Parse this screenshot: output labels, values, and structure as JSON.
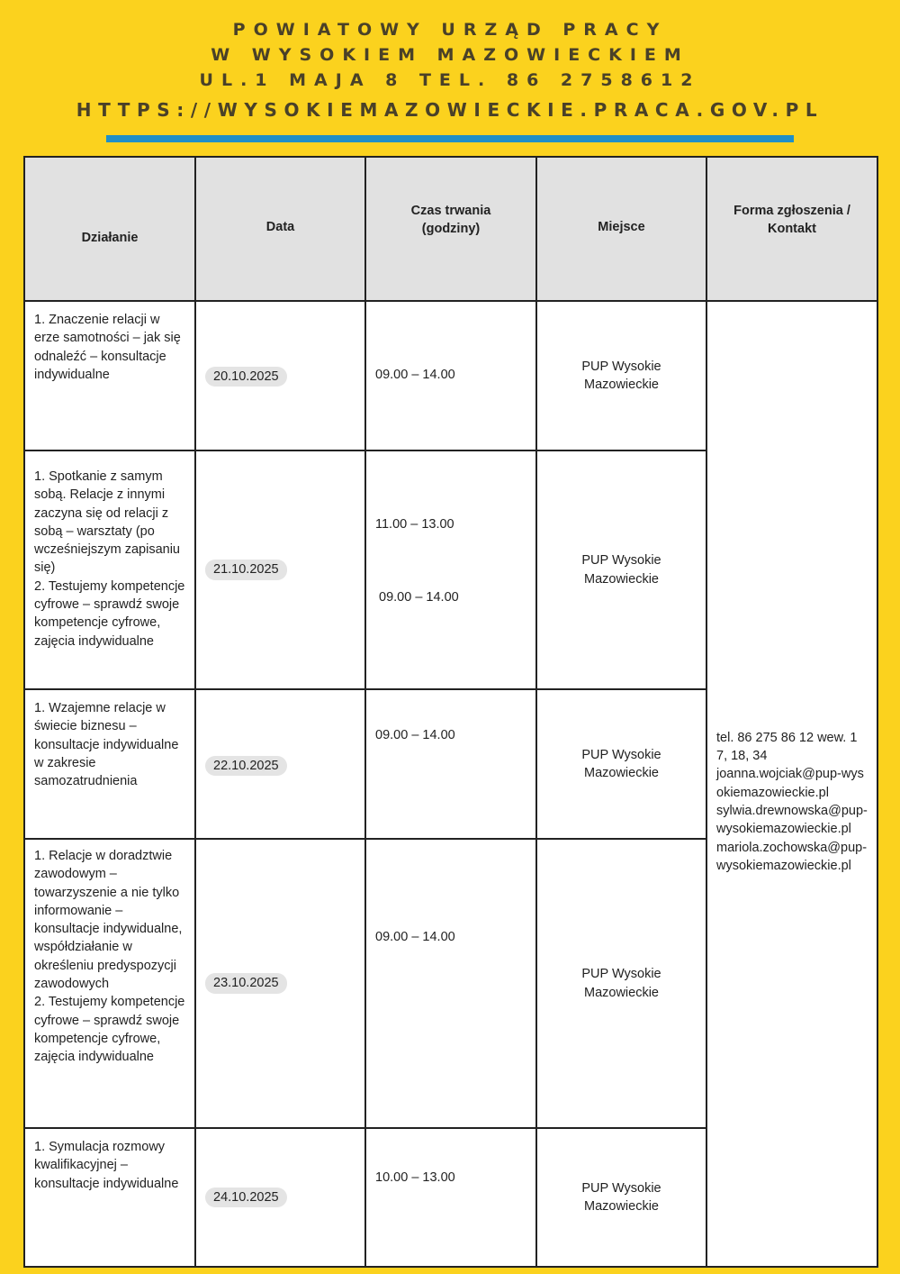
{
  "header": {
    "line1": "POWIATOWY URZĄD PRACY",
    "line2": "W WYSOKIEM MAZOWIECKIEM",
    "line3": "UL.1 MAJA 8 TEL. 86 2758612",
    "line4": "HTTPS://WYSOKIEMAZOWIECKIE.PRACA.GOV.PL"
  },
  "colors": {
    "background": "#fbd21e",
    "accent_bar": "#1f8fc7",
    "header_cell": "#e1e1e1"
  },
  "table": {
    "columns": [
      "Działanie",
      "Data",
      "Czas trwania\n(godziny)",
      "Miejsce",
      "Forma zgłoszenia / Kontakt"
    ],
    "rows": [
      {
        "activity": "1. Znaczenie relacji w erze samotności – jak się odnaleźć – konsultacje indywidualne",
        "date": "20.10.2025",
        "times": [
          "09.00 – 14.00"
        ],
        "place": "PUP Wysokie Mazowieckie"
      },
      {
        "activity": "1. Spotkanie z samym sobą. Relacje z innymi zaczyna się od relacji z sobą – warsztaty (po wcześniejszym zapisaniu się)\n2. Testujemy kompetencje cyfrowe – sprawdź swoje kompetencje cyfrowe, zajęcia indywidualne",
        "date": "21.10.2025",
        "times": [
          "11.00 – 13.00",
          "09.00 – 14.00"
        ],
        "place": "PUP Wysokie Mazowieckie"
      },
      {
        "activity": "1. Wzajemne relacje w świecie biznesu – konsultacje indywidualne w zakresie samozatrudnienia",
        "date": "22.10.2025",
        "times": [
          "09.00 – 14.00"
        ],
        "place": "PUP Wysokie Mazowieckie"
      },
      {
        "activity": "1. Relacje w doradztwie zawodowym – towarzyszenie a nie tylko informowanie – konsultacje indywidualne, współdziałanie w określeniu predyspozycji zawodowych\n 2. Testujemy kompetencje cyfrowe – sprawdź swoje kompetencje cyfrowe, zajęcia indywidualne",
        "date": "23.10.2025",
        "times": [
          "09.00 – 14.00"
        ],
        "place": "PUP Wysokie Mazowieckie"
      },
      {
        "activity": "1. Symulacja rozmowy kwalifikacyjnej – konsultacje indywidualne",
        "date": "24.10.2025",
        "times": [
          "10.00 – 13.00"
        ],
        "place": "PUP Wysokie Mazowieckie"
      }
    ],
    "contact": {
      "phone": "tel. 86 275 86 12 wew. 17, 18, 34",
      "emails": [
        "joanna.wojciak@pup-wysokiemazowieckie.pl",
        "sylwia.drewnowska@pup-wysokiemazowieckie.pl",
        "mariola.zochowska@pup-wysokiemazowieckie.pl"
      ]
    }
  }
}
